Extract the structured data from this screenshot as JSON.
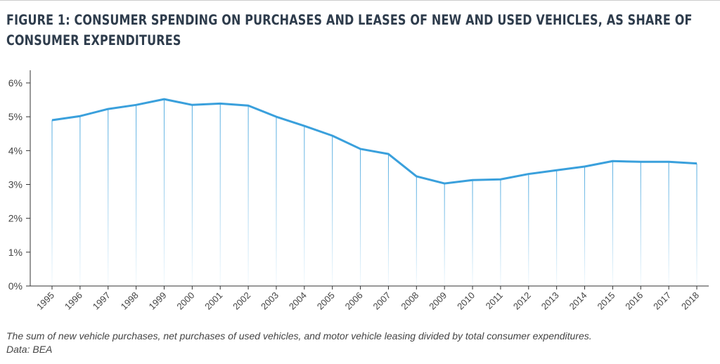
{
  "chart_data": {
    "type": "line",
    "title": "FIGURE 1: CONSUMER SPENDING ON PURCHASES AND LEASES OF NEW AND USED VEHICLES, AS SHARE OF CONSUMER EXPENDITURES",
    "xlabel": "",
    "ylabel": "",
    "categories": [
      "1995",
      "1996",
      "1997",
      "1998",
      "1999",
      "2000",
      "2001",
      "2002",
      "2003",
      "2004",
      "2005",
      "2006",
      "2007",
      "2008",
      "2009",
      "2010",
      "2011",
      "2012",
      "2013",
      "2014",
      "2015",
      "2016",
      "2017",
      "2018"
    ],
    "values": [
      4.9,
      5.02,
      5.23,
      5.35,
      5.52,
      5.35,
      5.39,
      5.33,
      5.0,
      4.73,
      4.44,
      4.05,
      3.9,
      3.24,
      3.03,
      3.13,
      3.15,
      3.31,
      3.42,
      3.53,
      3.69,
      3.67,
      3.67,
      3.62
    ],
    "ylim": [
      0,
      6
    ],
    "yticks": [
      "0%",
      "1%",
      "2%",
      "3%",
      "4%",
      "5%",
      "6%"
    ],
    "grid": false,
    "drop_lines": true,
    "line_color": "#3aa0dc"
  },
  "caption": "The sum of new vehicle purchases, net purchases of used vehicles, and motor vehicle leasing divided by total consumer expenditures.",
  "source": "Data: BEA"
}
